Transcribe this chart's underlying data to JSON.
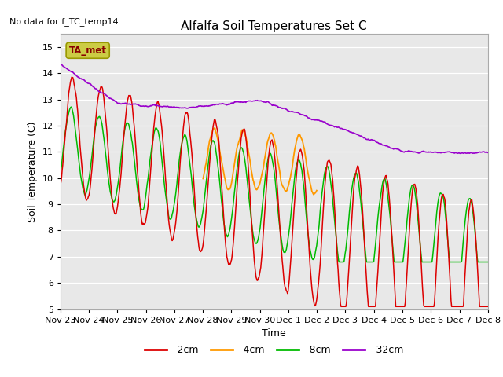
{
  "title": "Alfalfa Soil Temperatures Set C",
  "no_data_text": "No data for f_TC_temp14",
  "xlabel": "Time",
  "ylabel": "Soil Temperature (C)",
  "ylim": [
    5.0,
    15.5
  ],
  "yticks": [
    5.0,
    6.0,
    7.0,
    8.0,
    9.0,
    10.0,
    11.0,
    12.0,
    13.0,
    14.0,
    15.0
  ],
  "bg_color": "#e8e8e8",
  "colors": {
    "-2cm": "#dd0000",
    "-4cm": "#ff9900",
    "-8cm": "#00bb00",
    "-32cm": "#9900cc"
  },
  "ta_met_box_color": "#cccc44",
  "ta_met_text_color": "#880000",
  "xtick_pos": [
    0,
    1,
    2,
    3,
    4,
    5,
    6,
    7,
    8,
    9,
    10,
    11,
    12,
    13,
    14,
    15
  ],
  "xtick_lab": [
    "Nov 23",
    "Nov 24",
    "Nov 25",
    "Nov 26",
    "Nov 27",
    "Nov 28",
    "Nov 29",
    "Nov 30",
    "Dec 1",
    "Dec 2",
    "Dec 3",
    "Dec 4",
    "Dec 5",
    "Dec 6",
    "Dec 7",
    "Dec 8"
  ]
}
